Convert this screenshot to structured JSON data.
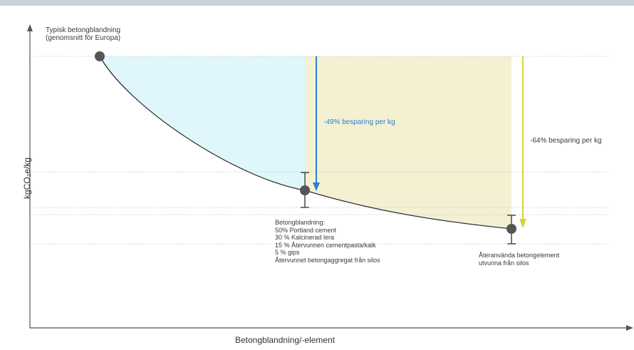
{
  "colors": {
    "background": "#ffffff",
    "top_bar": "#c9d3d9",
    "cyan_fill": "#dff7fb",
    "yellow_fill": "#f3f1d2",
    "blue_arrow": "#2a7fd4",
    "yellow_arrow": "#d9d23a",
    "marker": "#555555",
    "curve": "#333333",
    "gridline": "#c8c8c8"
  },
  "axes": {
    "y_label": "kgCO₂e/kg",
    "x_label": "Betongblandning/-element"
  },
  "points": {
    "typical": {
      "label_lines": [
        "Typisk betongblandning",
        "(genomsnitt för Europa)"
      ]
    },
    "mix": {
      "label_lines": [
        "Betongblandning:",
        "50% Portland cement",
        "30 % Kalcinerad lera",
        "15 % Återvunnen cementpasta/kalk",
        "5 % gips",
        "Återvunnet betongaggregat från silos"
      ]
    },
    "reused": {
      "label_lines": [
        "Återanvända betongelement",
        "utvunna från silos"
      ]
    }
  },
  "arrows": {
    "blue": {
      "label": "-49% besparing per kg"
    },
    "yellow": {
      "label": "-64% besparing per kg"
    }
  },
  "icons": {
    "y_axis_arrow": "arrow-up-icon",
    "x_axis_arrow": "arrow-right-icon"
  }
}
